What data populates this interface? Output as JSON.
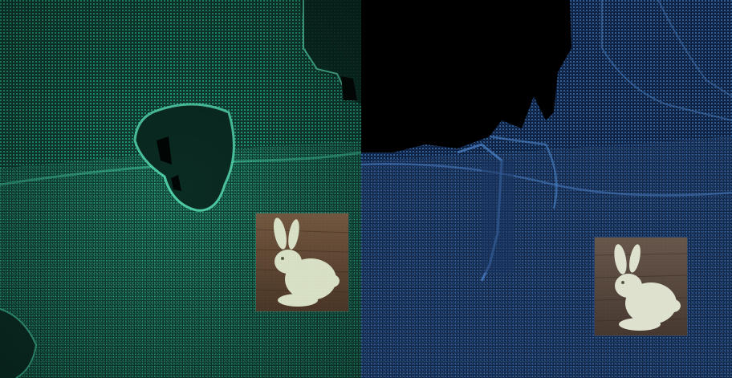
{
  "scene": {
    "left_panel": {
      "point_color": "#2fc79a",
      "dark_color": "#0b3a2e",
      "thumbnail": {
        "subject": "bunny-figurine",
        "background": "#6b4a34"
      }
    },
    "right_panel": {
      "point_color": "#3f75b8",
      "dark_color": "#0e1f3a",
      "void_color": "#000000",
      "thumbnail": {
        "subject": "bunny-figurine",
        "background": "#5c4a3e"
      }
    }
  }
}
